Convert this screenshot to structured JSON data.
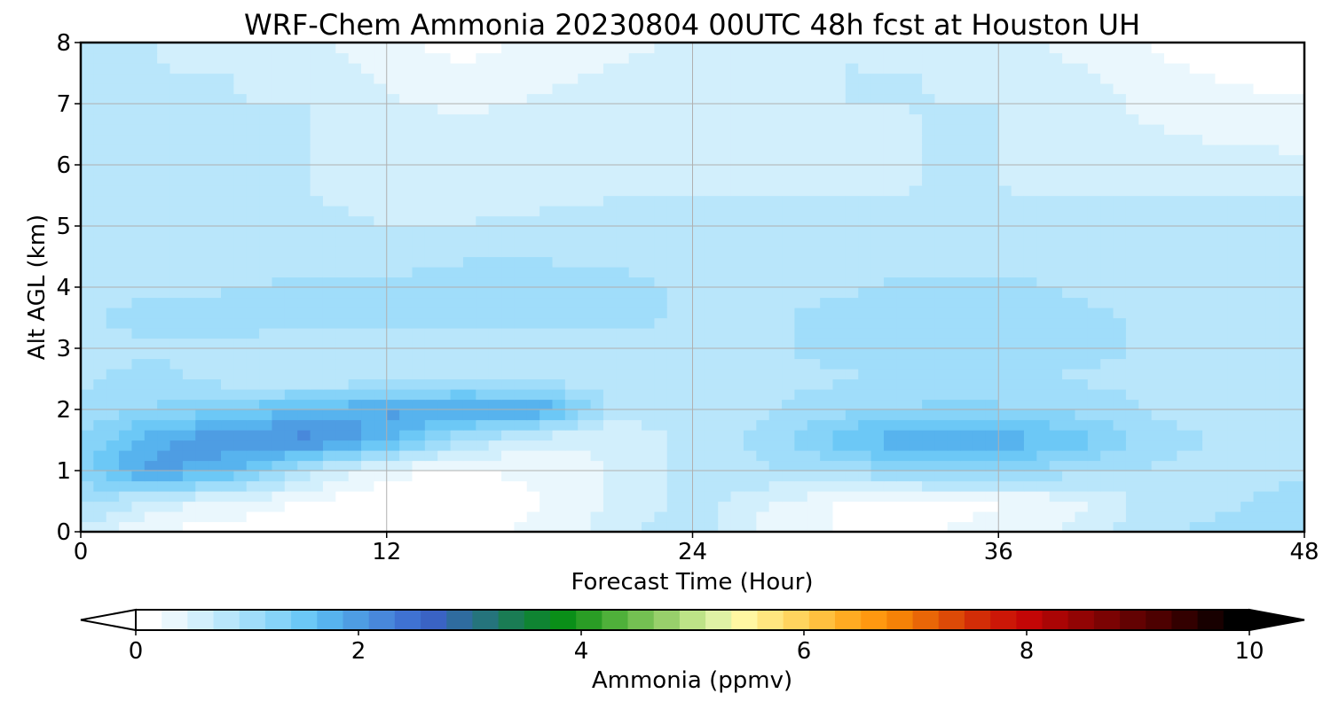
{
  "chart_data": {
    "type": "heatmap",
    "title": "WRF-Chem Ammonia  20230804 00UTC 48h fcst at Houston UH",
    "xlabel": "Forecast Time (Hour)",
    "ylabel": "Alt AGL (km)",
    "xlim": [
      0,
      48
    ],
    "ylim": [
      0,
      8
    ],
    "xticks": [
      0,
      12,
      24,
      36,
      48
    ],
    "yticks": [
      0,
      1,
      2,
      3,
      4,
      5,
      6,
      7,
      8
    ],
    "grid": true,
    "colorbar": {
      "label": "Ammonia  (ppmv)",
      "orientation": "horizontal",
      "position": "bottom",
      "extend": "both",
      "range": [
        0,
        10
      ],
      "ticks": [
        0,
        2,
        4,
        6,
        8,
        10
      ],
      "colors": [
        "#ffffff",
        "#eaf7fd",
        "#d2effc",
        "#b9e6fb",
        "#a0ddfa",
        "#86d3f8",
        "#6cc8f6",
        "#57b3ee",
        "#4e9de3",
        "#4888db",
        "#3f72d2",
        "#3a63c4",
        "#2f6c9f",
        "#25747c",
        "#1a7c54",
        "#0f8432",
        "#0a8f18",
        "#2a9d25",
        "#4fb03a",
        "#74c052",
        "#98d06b",
        "#bde387",
        "#dff2a5",
        "#fff7a2",
        "#ffe67f",
        "#ffd45e",
        "#ffc03f",
        "#ffab22",
        "#ff9810",
        "#f58207",
        "#e96607",
        "#dd4a07",
        "#d22d07",
        "#cc1707",
        "#c30606",
        "#aa0505",
        "#920404",
        "#7b0303",
        "#630202",
        "#4d0101",
        "#330000",
        "#180000",
        "#000000"
      ]
    },
    "x": [
      0,
      3,
      6,
      9,
      12,
      15,
      18,
      21,
      24,
      27,
      30,
      33,
      36,
      39,
      42,
      45,
      48
    ],
    "y": [
      0,
      0.5,
      1,
      1.5,
      2,
      2.5,
      3,
      3.5,
      4,
      4.5,
      5,
      5.5,
      6,
      6.5,
      7,
      7.5,
      8
    ],
    "z": [
      [
        0.6,
        0.2,
        0.1,
        0.1,
        0.1,
        0.1,
        0.3,
        0.6,
        0.9,
        0.3,
        0.2,
        0.2,
        0.3,
        0.5,
        0.9,
        1.0,
        1.1
      ],
      [
        1.0,
        0.6,
        0.4,
        0.2,
        0.1,
        0.1,
        0.2,
        0.5,
        0.8,
        0.5,
        0.2,
        0.2,
        0.2,
        0.4,
        0.8,
        0.9,
        1.0
      ],
      [
        1.3,
        2.0,
        1.6,
        0.8,
        0.3,
        0.2,
        0.3,
        0.5,
        0.8,
        0.9,
        1.0,
        1.2,
        1.2,
        1.0,
        0.9,
        0.9,
        0.9
      ],
      [
        1.2,
        1.8,
        2.1,
        2.2,
        1.7,
        0.9,
        0.5,
        0.5,
        0.8,
        1.0,
        1.6,
        1.9,
        1.8,
        1.6,
        1.0,
        0.9,
        0.9
      ],
      [
        1.0,
        1.2,
        1.4,
        1.7,
        1.9,
        2.0,
        1.9,
        0.8,
        0.8,
        0.9,
        1.1,
        1.2,
        1.2,
        1.1,
        0.9,
        0.9,
        0.9
      ],
      [
        0.9,
        1.0,
        0.8,
        0.7,
        0.8,
        0.8,
        0.8,
        0.8,
        0.8,
        0.9,
        0.9,
        1.0,
        1.0,
        0.9,
        0.9,
        0.9,
        0.9
      ],
      [
        0.9,
        0.9,
        0.8,
        0.7,
        0.7,
        0.7,
        0.8,
        0.8,
        0.9,
        0.9,
        1.0,
        1.1,
        1.1,
        1.0,
        0.9,
        0.8,
        0.8
      ],
      [
        0.9,
        1.0,
        1.1,
        1.1,
        1.0,
        1.0,
        1.0,
        1.0,
        0.9,
        0.9,
        1.0,
        1.1,
        1.1,
        1.0,
        0.9,
        0.8,
        0.8
      ],
      [
        0.9,
        0.9,
        0.9,
        1.0,
        1.0,
        1.1,
        1.1,
        1.0,
        0.9,
        0.9,
        0.9,
        1.0,
        1.0,
        0.9,
        0.8,
        0.8,
        0.8
      ],
      [
        0.8,
        0.8,
        0.8,
        0.8,
        0.8,
        0.9,
        0.9,
        0.9,
        0.8,
        0.8,
        0.8,
        0.8,
        0.8,
        0.8,
        0.8,
        0.8,
        0.8
      ],
      [
        0.8,
        0.8,
        0.8,
        0.8,
        0.7,
        0.7,
        0.8,
        0.8,
        0.8,
        0.7,
        0.7,
        0.7,
        0.7,
        0.7,
        0.7,
        0.7,
        0.7
      ],
      [
        0.8,
        0.7,
        0.7,
        0.7,
        0.6,
        0.6,
        0.6,
        0.7,
        0.7,
        0.7,
        0.7,
        0.7,
        0.7,
        0.7,
        0.7,
        0.7,
        0.7
      ],
      [
        0.7,
        0.7,
        0.7,
        0.7,
        0.6,
        0.6,
        0.6,
        0.6,
        0.6,
        0.6,
        0.6,
        0.7,
        0.7,
        0.6,
        0.6,
        0.6,
        0.5
      ],
      [
        0.7,
        0.7,
        0.7,
        0.7,
        0.6,
        0.6,
        0.6,
        0.6,
        0.6,
        0.6,
        0.6,
        0.7,
        0.7,
        0.6,
        0.5,
        0.4,
        0.4
      ],
      [
        0.7,
        0.7,
        0.7,
        0.7,
        0.5,
        0.4,
        0.5,
        0.6,
        0.6,
        0.6,
        0.7,
        0.7,
        0.7,
        0.6,
        0.4,
        0.3,
        0.3
      ],
      [
        0.7,
        0.7,
        0.7,
        0.6,
        0.4,
        0.3,
        0.4,
        0.5,
        0.6,
        0.6,
        0.7,
        0.7,
        0.6,
        0.5,
        0.3,
        0.2,
        0.1
      ],
      [
        0.7,
        0.7,
        0.6,
        0.5,
        0.3,
        0.1,
        0.3,
        0.4,
        0.5,
        0.6,
        0.7,
        0.6,
        0.6,
        0.4,
        0.2,
        0.1,
        0.1
      ]
    ]
  }
}
